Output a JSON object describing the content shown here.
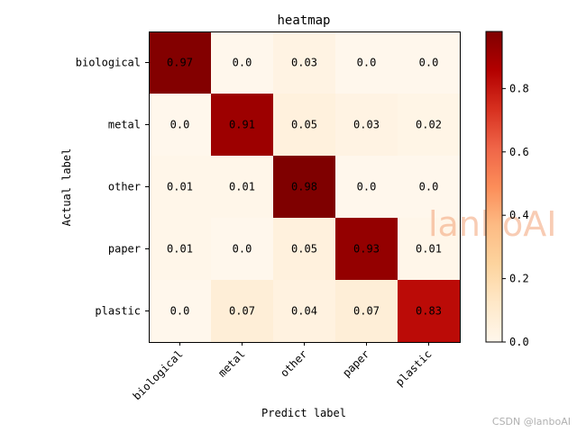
{
  "chart_data": {
    "type": "heatmap",
    "title": "heatmap",
    "xlabel": "Predict label",
    "ylabel": "Actual label",
    "x_categories": [
      "biological",
      "metal",
      "other",
      "paper",
      "plastic"
    ],
    "y_categories": [
      "biological",
      "metal",
      "other",
      "paper",
      "plastic"
    ],
    "values": [
      [
        0.97,
        0.0,
        0.03,
        0.0,
        0.0
      ],
      [
        0.0,
        0.91,
        0.05,
        0.03,
        0.02
      ],
      [
        0.01,
        0.01,
        0.98,
        0.0,
        0.0
      ],
      [
        0.01,
        0.0,
        0.05,
        0.93,
        0.01
      ],
      [
        0.0,
        0.07,
        0.04,
        0.07,
        0.83
      ]
    ],
    "value_labels": [
      [
        "0.97",
        "0.0",
        "0.03",
        "0.0",
        "0.0"
      ],
      [
        "0.0",
        "0.91",
        "0.05",
        "0.03",
        "0.02"
      ],
      [
        "0.01",
        "0.01",
        "0.98",
        "0.0",
        "0.0"
      ],
      [
        "0.01",
        "0.0",
        "0.05",
        "0.93",
        "0.01"
      ],
      [
        "0.0",
        "0.07",
        "0.04",
        "0.07",
        "0.83"
      ]
    ],
    "colormap": "OrRd",
    "colorbar": {
      "range": [
        0.0,
        0.98
      ],
      "ticks": [
        0.0,
        0.2,
        0.4,
        0.6,
        0.8
      ],
      "tick_labels": [
        "0.0",
        "0.2",
        "0.4",
        "0.6",
        "0.8"
      ]
    }
  },
  "watermark": {
    "main": "lanboAI",
    "credit": "CSDN @lanboAI"
  }
}
